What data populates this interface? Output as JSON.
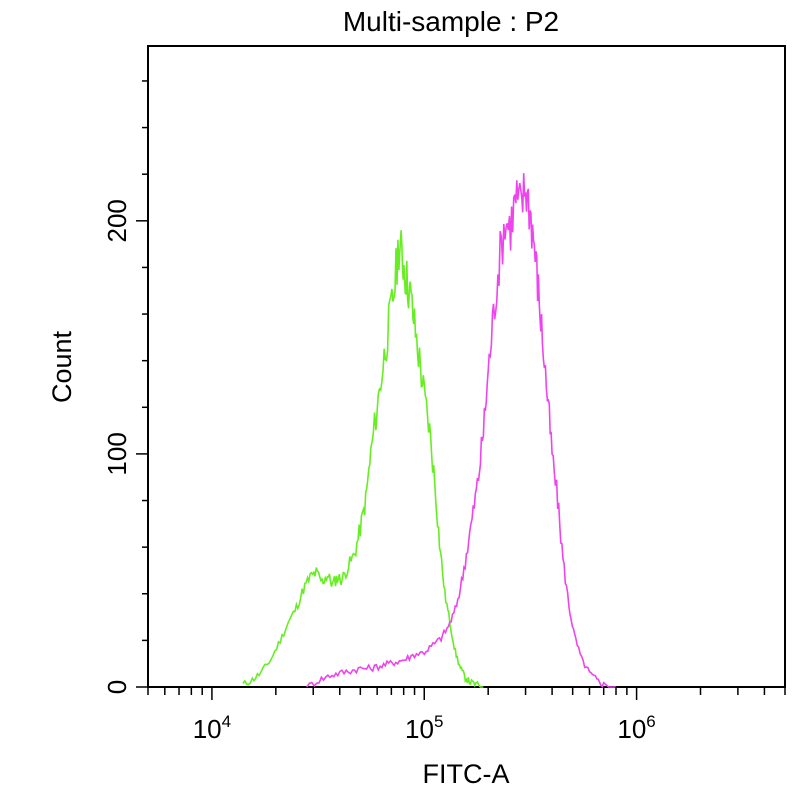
{
  "chart_data": {
    "type": "line",
    "title": "Multi-sample : P2",
    "xlabel": "FITC-A",
    "ylabel": "Count",
    "xscale": "log",
    "xlim": [
      5000,
      5000000
    ],
    "ylim": [
      0,
      275
    ],
    "x_ticks": [
      {
        "base": "10",
        "exp": "4",
        "value": 10000
      },
      {
        "base": "10",
        "exp": "5",
        "value": 100000
      },
      {
        "base": "10",
        "exp": "6",
        "value": 1000000
      }
    ],
    "y_ticks": [
      {
        "label": "0",
        "value": 0
      },
      {
        "label": "100",
        "value": 100
      },
      {
        "label": "200",
        "value": 200
      }
    ],
    "grid": false,
    "series": [
      {
        "color": "#66ee22",
        "x": [
          14000,
          15500,
          17000,
          19000,
          21000,
          23000,
          25000,
          27000,
          29000,
          31000,
          33000,
          35000,
          37000,
          39000,
          41000,
          44000,
          47000,
          50000,
          53000,
          56000,
          60000,
          64000,
          68000,
          72000,
          76000,
          79000,
          82000,
          86000,
          90000,
          95000,
          100000,
          106000,
          112000,
          118000,
          125000,
          132000,
          140000,
          148000,
          156000,
          165000,
          175000,
          190000
        ],
        "y": [
          1,
          3,
          6,
          12,
          20,
          28,
          34,
          42,
          47,
          49,
          45,
          48,
          44,
          47,
          46,
          52,
          57,
          68,
          80,
          100,
          120,
          138,
          155,
          170,
          190,
          184,
          176,
          168,
          155,
          140,
          125,
          110,
          88,
          62,
          40,
          28,
          15,
          8,
          4,
          2,
          1,
          0
        ]
      },
      {
        "color": "#ee44ee",
        "x": [
          28000,
          32000,
          36000,
          40000,
          45000,
          50000,
          56000,
          62000,
          68000,
          75000,
          82000,
          90000,
          100000,
          110000,
          120000,
          130000,
          140000,
          150000,
          160000,
          170000,
          180000,
          190000,
          200000,
          212000,
          225000,
          240000,
          255000,
          270000,
          285000,
          300000,
          315000,
          330000,
          345000,
          360000,
          380000,
          400000,
          425000,
          450000,
          480000,
          510000,
          550000,
          600000,
          650000,
          700000,
          800000
        ],
        "y": [
          0,
          3,
          5,
          6,
          7,
          8,
          8,
          9,
          10,
          11,
          12,
          14,
          15,
          18,
          21,
          26,
          33,
          45,
          60,
          75,
          90,
          110,
          135,
          160,
          182,
          200,
          198,
          210,
          206,
          215,
          205,
          190,
          170,
          150,
          125,
          100,
          80,
          55,
          35,
          22,
          12,
          6,
          3,
          1,
          0
        ]
      }
    ]
  }
}
